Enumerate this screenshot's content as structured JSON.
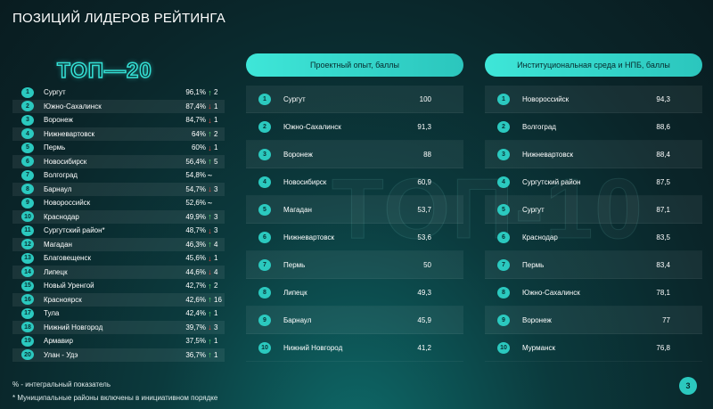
{
  "title": "ПОЗИЦИЙ ЛИДЕРОВ РЕЙТИНГА",
  "logo": "ТОП—20",
  "watermark": "ТОП-10",
  "ranking": [
    {
      "n": "1",
      "name": "Сургут",
      "val": "96,1%",
      "dir": "up",
      "chg": "2"
    },
    {
      "n": "2",
      "name": "Южно-Сахалинск",
      "val": "87,4%",
      "dir": "down",
      "chg": "1"
    },
    {
      "n": "3",
      "name": "Воронеж",
      "val": "84,7%",
      "dir": "down",
      "chg": "1"
    },
    {
      "n": "4",
      "name": "Нижневартовск",
      "val": "64%",
      "dir": "up",
      "chg": "2"
    },
    {
      "n": "5",
      "name": "Пермь",
      "val": "60%",
      "dir": "down",
      "chg": "1"
    },
    {
      "n": "6",
      "name": "Новосибирск",
      "val": "56,4%",
      "dir": "up",
      "chg": "5"
    },
    {
      "n": "7",
      "name": "Волгоград",
      "val": "54,8%",
      "dir": "same",
      "chg": ""
    },
    {
      "n": "8",
      "name": "Барнаул",
      "val": "54,7%",
      "dir": "down",
      "chg": "3"
    },
    {
      "n": "9",
      "name": "Новороссийск",
      "val": "52,6%",
      "dir": "same",
      "chg": ""
    },
    {
      "n": "10",
      "name": "Краснодар",
      "val": "49,9%",
      "dir": "up",
      "chg": "3"
    },
    {
      "n": "11",
      "name": "Сургутский район*",
      "val": "48,7%",
      "dir": "down",
      "chg": "3"
    },
    {
      "n": "12",
      "name": "Магадан",
      "val": "46,3%",
      "dir": "up",
      "chg": "4"
    },
    {
      "n": "13",
      "name": "Благовещенск",
      "val": "45,6%",
      "dir": "down",
      "chg": "1"
    },
    {
      "n": "14",
      "name": "Липецк",
      "val": "44,6%",
      "dir": "down",
      "chg": "4"
    },
    {
      "n": "15",
      "name": "Новый Уренгой",
      "val": "42,7%",
      "dir": "up",
      "chg": "2"
    },
    {
      "n": "16",
      "name": "Красноярск",
      "val": "42,6%",
      "dir": "up",
      "chg": "16"
    },
    {
      "n": "17",
      "name": "Тула",
      "val": "42,4%",
      "dir": "up",
      "chg": "1"
    },
    {
      "n": "18",
      "name": "Нижний Новгород",
      "val": "39,7%",
      "dir": "down",
      "chg": "3"
    },
    {
      "n": "19",
      "name": "Армавир",
      "val": "37,5%",
      "dir": "up",
      "chg": "1"
    },
    {
      "n": "20",
      "name": "Улан - Удэ",
      "val": "36,7%",
      "dir": "up",
      "chg": "1"
    }
  ],
  "table1": {
    "header": "Проектный опыт, баллы",
    "rows": [
      {
        "n": "1",
        "name": "Сургут",
        "val": "100"
      },
      {
        "n": "2",
        "name": "Южно-Сахалинск",
        "val": "91,3"
      },
      {
        "n": "3",
        "name": "Воронеж",
        "val": "88"
      },
      {
        "n": "4",
        "name": "Новосибирск",
        "val": "60,9"
      },
      {
        "n": "5",
        "name": "Магадан",
        "val": "53,7"
      },
      {
        "n": "6",
        "name": "Нижневартовск",
        "val": "53,6"
      },
      {
        "n": "7",
        "name": "Пермь",
        "val": "50"
      },
      {
        "n": "8",
        "name": "Липецк",
        "val": "49,3"
      },
      {
        "n": "9",
        "name": "Барнаул",
        "val": "45,9"
      },
      {
        "n": "10",
        "name": "Нижний Новгород",
        "val": "41,2"
      }
    ]
  },
  "table2": {
    "header": "Институциональная среда и НПБ, баллы",
    "rows": [
      {
        "n": "1",
        "name": "Новороссийск",
        "val": "94,3"
      },
      {
        "n": "2",
        "name": "Волгоград",
        "val": "88,6"
      },
      {
        "n": "3",
        "name": "Нижневартовск",
        "val": "88,4"
      },
      {
        "n": "4",
        "name": "Сургутский район",
        "val": "87,5"
      },
      {
        "n": "5",
        "name": "Сургут",
        "val": "87,1"
      },
      {
        "n": "6",
        "name": "Краснодар",
        "val": "83,5"
      },
      {
        "n": "7",
        "name": "Пермь",
        "val": "83,4"
      },
      {
        "n": "8",
        "name": "Южно-Сахалинск",
        "val": "78,1"
      },
      {
        "n": "9",
        "name": "Воронеж",
        "val": "77"
      },
      {
        "n": "10",
        "name": "Мурманск",
        "val": "76,8"
      }
    ]
  },
  "footnotes": [
    "% - интегральный показатель",
    "* Муниципальные районы включены в инициативном порядке"
  ],
  "page_number": "3",
  "colors": {
    "accent": "#2bc9bf",
    "up": "#4fdc67",
    "down": "#e6413b"
  }
}
